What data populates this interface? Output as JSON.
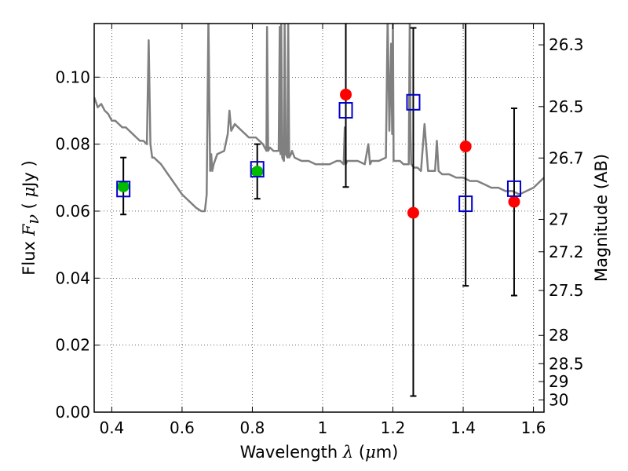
{
  "chart_data": {
    "type": "scatter",
    "title": "",
    "xlabel": {
      "prefix": "Wavelength  ",
      "symbol": "λ",
      "unit_open": " (",
      "unit_mu": "μ",
      "unit_close": "m)"
    },
    "ylabel": {
      "prefix": "Flux  ",
      "symbol": "F",
      "subscript": "ν",
      "unit_open": " ( ",
      "unit_mu": "μ",
      "unit_close": "Jy )"
    },
    "y2label": "Magnitude (AB)",
    "xlim": [
      0.35,
      1.63
    ],
    "ylim": [
      0.0,
      0.116
    ],
    "grid": true,
    "xticks": [
      0.4,
      0.6,
      0.8,
      1.0,
      1.2,
      1.4,
      1.6
    ],
    "xtick_labels": [
      "0.4",
      "0.6",
      "0.8",
      "1",
      "1.2",
      "1.4",
      "1.6"
    ],
    "yticks": [
      0.0,
      0.02,
      0.04,
      0.06,
      0.08,
      0.1
    ],
    "ytick_labels": [
      "0.00",
      "0.02",
      "0.04",
      "0.06",
      "0.08",
      "0.10"
    ],
    "y2ticks": [
      {
        "mag": 26.3,
        "label": "26.3"
      },
      {
        "mag": 26.5,
        "label": "26.5"
      },
      {
        "mag": 26.7,
        "label": "26.7"
      },
      {
        "mag": 27.0,
        "label": "27"
      },
      {
        "mag": 27.2,
        "label": "27.2"
      },
      {
        "mag": 27.5,
        "label": "27.5"
      },
      {
        "mag": 28.0,
        "label": "28"
      },
      {
        "mag": 28.5,
        "label": "28.5"
      },
      {
        "mag": 29.0,
        "label": "29"
      },
      {
        "mag": 30.0,
        "label": "30"
      }
    ],
    "colors": {
      "template": "#808080",
      "errorbar": "#000000",
      "observed": "#ff0000",
      "model": "#0000cc",
      "alt": "#00bb00"
    },
    "template_spectrum": {
      "x": [
        0.35,
        0.36,
        0.37,
        0.38,
        0.39,
        0.4,
        0.41,
        0.42,
        0.43,
        0.44,
        0.45,
        0.46,
        0.47,
        0.48,
        0.49,
        0.5,
        0.505,
        0.51,
        0.515,
        0.52,
        0.54,
        0.56,
        0.58,
        0.6,
        0.62,
        0.64,
        0.655,
        0.665,
        0.67,
        0.675,
        0.68,
        0.683,
        0.686,
        0.69,
        0.7,
        0.72,
        0.73,
        0.735,
        0.74,
        0.75,
        0.76,
        0.77,
        0.78,
        0.79,
        0.8,
        0.81,
        0.82,
        0.83,
        0.84,
        0.842,
        0.845,
        0.85,
        0.86,
        0.87,
        0.875,
        0.878,
        0.88,
        0.882,
        0.885,
        0.89,
        0.892,
        0.895,
        0.9,
        0.902,
        0.905,
        0.91,
        0.913,
        0.92,
        0.94,
        0.96,
        0.98,
        1.0,
        1.02,
        1.04,
        1.05,
        1.06,
        1.063,
        1.066,
        1.07,
        1.08,
        1.1,
        1.12,
        1.13,
        1.135,
        1.14,
        1.15,
        1.16,
        1.18,
        1.185,
        1.19,
        1.195,
        1.198,
        1.2,
        1.202,
        1.21,
        1.22,
        1.23,
        1.24,
        1.245,
        1.248,
        1.25,
        1.252,
        1.26,
        1.27,
        1.28,
        1.29,
        1.3,
        1.32,
        1.325,
        1.33,
        1.34,
        1.36,
        1.38,
        1.4,
        1.42,
        1.44,
        1.46,
        1.48,
        1.5,
        1.52,
        1.54,
        1.56,
        1.58,
        1.6,
        1.62,
        1.63
      ],
      "y": [
        0.094,
        0.091,
        0.092,
        0.09,
        0.089,
        0.087,
        0.087,
        0.086,
        0.085,
        0.085,
        0.084,
        0.083,
        0.082,
        0.081,
        0.081,
        0.08,
        0.111,
        0.08,
        0.076,
        0.076,
        0.074,
        0.071,
        0.068,
        0.065,
        0.063,
        0.061,
        0.06,
        0.06,
        0.065,
        0.118,
        0.072,
        0.077,
        0.072,
        0.074,
        0.077,
        0.078,
        0.083,
        0.09,
        0.084,
        0.086,
        0.085,
        0.084,
        0.083,
        0.082,
        0.082,
        0.082,
        0.081,
        0.08,
        0.078,
        0.115,
        0.078,
        0.079,
        0.078,
        0.078,
        0.078,
        0.115,
        0.077,
        0.118,
        0.076,
        0.075,
        0.117,
        0.077,
        0.076,
        0.118,
        0.076,
        0.077,
        0.078,
        0.076,
        0.075,
        0.075,
        0.074,
        0.074,
        0.074,
        0.075,
        0.075,
        0.074,
        0.085,
        0.074,
        0.075,
        0.075,
        0.075,
        0.074,
        0.08,
        0.074,
        0.075,
        0.075,
        0.075,
        0.076,
        0.118,
        0.084,
        0.11,
        0.083,
        0.118,
        0.075,
        0.075,
        0.075,
        0.074,
        0.074,
        0.074,
        0.118,
        0.084,
        0.074,
        0.073,
        0.073,
        0.072,
        0.086,
        0.072,
        0.072,
        0.081,
        0.072,
        0.071,
        0.071,
        0.07,
        0.07,
        0.069,
        0.069,
        0.068,
        0.067,
        0.067,
        0.066,
        0.066,
        0.065,
        0.066,
        0.067,
        0.069,
        0.07
      ]
    },
    "series": [
      {
        "name": "",
        "marker": "circle",
        "color": "#ff0000",
        "points": [
          {
            "x": 1.066,
            "y": 0.0948
          },
          {
            "x": 1.258,
            "y": 0.0595
          },
          {
            "x": 1.407,
            "y": 0.0793
          },
          {
            "x": 1.545,
            "y": 0.0628
          }
        ]
      },
      {
        "name": "",
        "marker": "circle",
        "color": "#00bb00",
        "points": [
          {
            "x": 0.433,
            "y": 0.0674
          },
          {
            "x": 0.814,
            "y": 0.0718
          }
        ]
      },
      {
        "name": "",
        "marker": "square",
        "color": "#0000cc",
        "points": [
          {
            "x": 0.433,
            "y": 0.0666
          },
          {
            "x": 0.814,
            "y": 0.0725
          },
          {
            "x": 1.066,
            "y": 0.0901
          },
          {
            "x": 1.258,
            "y": 0.0925
          },
          {
            "x": 1.407,
            "y": 0.0622
          },
          {
            "x": 1.545,
            "y": 0.0667
          }
        ]
      }
    ],
    "errorbars": [
      {
        "x": 0.433,
        "ylow": 0.059,
        "yhigh": 0.076
      },
      {
        "x": 0.814,
        "ylow": 0.0637,
        "yhigh": 0.08
      },
      {
        "x": 1.066,
        "ylow": 0.0672,
        "yhigh": 0.12
      },
      {
        "x": 1.258,
        "ylow": 0.0048,
        "yhigh": 0.1147
      },
      {
        "x": 1.407,
        "ylow": 0.0377,
        "yhigh": 0.12
      },
      {
        "x": 1.545,
        "ylow": 0.0348,
        "yhigh": 0.0907
      }
    ]
  }
}
